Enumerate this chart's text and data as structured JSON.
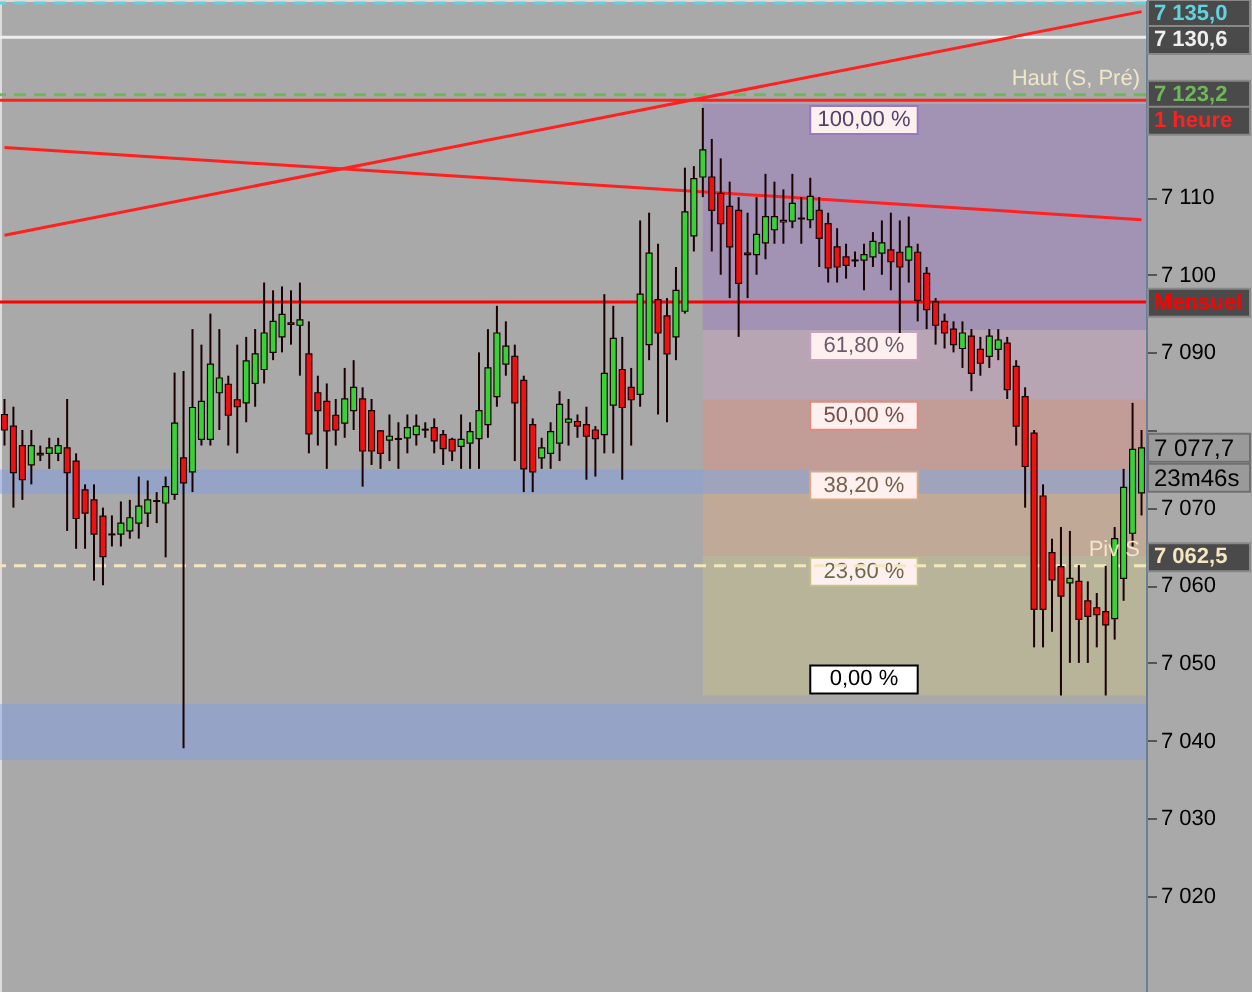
{
  "chart_data": {
    "type": "candlestick",
    "categories": [
      null,
      null,
      null,
      null,
      null,
      null,
      null,
      null,
      null,
      null,
      null,
      null,
      null,
      null,
      null,
      null,
      null,
      null,
      null,
      null,
      null,
      null,
      null,
      null,
      null,
      null,
      null,
      null,
      null,
      null,
      null,
      null,
      null,
      null,
      null,
      null,
      null,
      null,
      null,
      null,
      null,
      null,
      null,
      null,
      null,
      null,
      null,
      null,
      null,
      null,
      null,
      null,
      null,
      null,
      null,
      null,
      null,
      null,
      null,
      null,
      null,
      null,
      null,
      null,
      null,
      null,
      null,
      null,
      null,
      null,
      null,
      null,
      null,
      null,
      null,
      null,
      null,
      null,
      null,
      null,
      null,
      null,
      null,
      null,
      null,
      null,
      null,
      null,
      null,
      null,
      null,
      null,
      null,
      null,
      null,
      null,
      null,
      null,
      null,
      null,
      null,
      null,
      null,
      null,
      null,
      null,
      null,
      null,
      null,
      null,
      null,
      null,
      null,
      null,
      null,
      null,
      null,
      null,
      null,
      null,
      null,
      null,
      null,
      null,
      null,
      null,
      null,
      null
    ],
    "ohlc": [
      [
        7082,
        7084,
        7078,
        7080
      ],
      [
        7080.5,
        7083,
        7070,
        7074.5
      ],
      [
        7078,
        7080,
        7071,
        7073.6
      ],
      [
        7075.5,
        7080,
        7073,
        7078
      ],
      [
        7076.8,
        7078,
        7076,
        7077
      ],
      [
        7077,
        7079,
        7075,
        7077.7
      ],
      [
        7077,
        7079,
        7076,
        7078
      ],
      [
        7077.7,
        7084,
        7067,
        7074.5
      ],
      [
        7076,
        7077,
        7064.7,
        7068.6
      ],
      [
        7072.3,
        7073,
        7064.7,
        7069.3
      ],
      [
        7071,
        7073,
        7060.6,
        7066.6
      ],
      [
        7068.9,
        7070,
        7060,
        7063.7
      ],
      [
        7066.5,
        7069,
        7065,
        7066.6
      ],
      [
        7066.6,
        7070.8,
        7065,
        7068
      ],
      [
        7067,
        7071,
        7066,
        7068.7
      ],
      [
        7068,
        7074,
        7066,
        7070.2
      ],
      [
        7069.3,
        7073.5,
        7067.5,
        7071
      ],
      [
        7070.8,
        7072,
        7068,
        7070.9
      ],
      [
        7070.6,
        7074,
        7063.6,
        7072.7
      ],
      [
        7071.7,
        7087.4,
        7071,
        7080.9
      ],
      [
        7076.4,
        7087.6,
        7039,
        7073.2
      ],
      [
        7074.6,
        7093,
        7072,
        7082.9
      ],
      [
        7078.8,
        7091,
        7078,
        7083.7
      ],
      [
        7078.8,
        7095,
        7078,
        7088.5
      ],
      [
        7084.8,
        7093,
        7080,
        7086.7
      ],
      [
        7085.9,
        7087,
        7078,
        7081.9
      ],
      [
        7083.9,
        7091,
        7077,
        7083
      ],
      [
        7083.5,
        7092,
        7081,
        7088.9
      ],
      [
        7086,
        7093,
        7083,
        7089.8
      ],
      [
        7087.8,
        7099,
        7086,
        7092.5
      ],
      [
        7090,
        7098,
        7089,
        7094
      ],
      [
        7092,
        7098.5,
        7090,
        7094.9
      ],
      [
        7093.6,
        7098,
        7091,
        7093.8
      ],
      [
        7093.5,
        7099,
        7087,
        7094.2
      ],
      [
        7089.8,
        7094,
        7077,
        7079.5
      ],
      [
        7084.8,
        7087,
        7078,
        7082.5
      ],
      [
        7083.7,
        7086,
        7075,
        7079.9
      ],
      [
        7081.9,
        7084,
        7078,
        7080
      ],
      [
        7080.9,
        7088,
        7079,
        7084
      ],
      [
        7082.5,
        7089,
        7080,
        7085.5
      ],
      [
        7084,
        7085.5,
        7072.7,
        7077.3
      ],
      [
        7082.5,
        7084,
        7075.5,
        7077.3
      ],
      [
        7079.9,
        7080,
        7075,
        7077
      ],
      [
        7078.7,
        7082,
        7076,
        7079.2
      ],
      [
        7078.9,
        7081,
        7075,
        7078.8
      ],
      [
        7079,
        7082,
        7077,
        7080.3
      ],
      [
        7079.4,
        7082,
        7078,
        7080.5
      ],
      [
        7080,
        7081,
        7079,
        7080.1
      ],
      [
        7080.3,
        7081.5,
        7077,
        7078.6
      ],
      [
        7079.4,
        7080,
        7075.5,
        7077.6
      ],
      [
        7078.8,
        7079,
        7076,
        7077.3
      ],
      [
        7077.9,
        7082,
        7075,
        7078.8
      ],
      [
        7078.3,
        7081,
        7075,
        7079.8
      ],
      [
        7078.9,
        7090,
        7075,
        7082.5
      ],
      [
        7080.7,
        7093,
        7079,
        7088
      ],
      [
        7084.3,
        7096,
        7083,
        7092.5
      ],
      [
        7088.5,
        7094,
        7087,
        7090.8
      ],
      [
        7089.5,
        7091,
        7076,
        7083.5
      ],
      [
        7086.4,
        7087,
        7072,
        7075
      ],
      [
        7080.7,
        7081.5,
        7072,
        7074.6
      ],
      [
        7076.4,
        7079,
        7075,
        7077.7
      ],
      [
        7077,
        7081,
        7075,
        7079.8
      ],
      [
        7078.3,
        7085,
        7076,
        7083.3
      ],
      [
        7081,
        7084,
        7078,
        7081.4
      ],
      [
        7081.1,
        7082,
        7079,
        7080.5
      ],
      [
        7080.7,
        7083,
        7073.6,
        7079.2
      ],
      [
        7080,
        7080.5,
        7074,
        7078.9
      ],
      [
        7079.4,
        7097.5,
        7077,
        7087.3
      ],
      [
        7083.2,
        7096,
        7077,
        7091.8
      ],
      [
        7087.8,
        7092,
        7073.6,
        7082.9
      ],
      [
        7085.5,
        7088,
        7078,
        7083.9
      ],
      [
        7084.6,
        7107,
        7083,
        7097.5
      ],
      [
        7091,
        7108,
        7089,
        7102.8
      ],
      [
        7096.8,
        7104,
        7082,
        7092.5
      ],
      [
        7094.7,
        7097,
        7081,
        7089.8
      ],
      [
        7092,
        7101,
        7089,
        7098
      ],
      [
        7095.3,
        7113.8,
        7095,
        7108.1
      ],
      [
        7105,
        7114,
        7103,
        7112.4
      ],
      [
        7112.6,
        7121.5,
        7110,
        7116.1
      ],
      [
        7112.6,
        7117.5,
        7103,
        7108.3
      ],
      [
        7110.5,
        7115,
        7100,
        7106.6
      ],
      [
        7108.8,
        7112,
        7097,
        7103.6
      ],
      [
        7108.3,
        7110,
        7092,
        7098.9
      ],
      [
        7102.6,
        7108,
        7097,
        7102.8
      ],
      [
        7102.6,
        7110,
        7100,
        7105.2
      ],
      [
        7104.1,
        7113,
        7102,
        7107.5
      ],
      [
        7105.8,
        7112,
        7104,
        7107.5
      ],
      [
        7106.8,
        7111,
        7104,
        7107
      ],
      [
        7106.9,
        7113,
        7106,
        7109.2
      ],
      [
        7107.3,
        7110,
        7104,
        7107.2
      ],
      [
        7107.1,
        7112.5,
        7106,
        7110.1
      ],
      [
        7108.3,
        7110,
        7101,
        7104.7
      ],
      [
        7106.6,
        7108,
        7099,
        7100.9
      ],
      [
        7103.6,
        7106,
        7099,
        7101
      ],
      [
        7102.3,
        7104,
        7099.5,
        7101.2
      ],
      [
        7101.8,
        7103,
        7101,
        7101.9
      ],
      [
        7101.9,
        7104,
        7098,
        7102.6
      ],
      [
        7102.3,
        7105.5,
        7101,
        7104.3
      ],
      [
        7102.8,
        7107,
        7100,
        7104.1
      ],
      [
        7103.2,
        7108,
        7098,
        7101.7
      ],
      [
        7102.9,
        7107,
        7092.5,
        7101
      ],
      [
        7101.9,
        7107.5,
        7099,
        7103.6
      ],
      [
        7102.9,
        7104,
        7094,
        7096.7
      ],
      [
        7100.2,
        7101,
        7093,
        7095.5
      ],
      [
        7096.5,
        7097,
        7091,
        7093.5
      ],
      [
        7094,
        7095,
        7090.5,
        7092.5
      ],
      [
        7093,
        7094,
        7090,
        7091
      ],
      [
        7090.5,
        7094,
        7088,
        7092.5
      ],
      [
        7092.1,
        7093,
        7085,
        7087.3
      ],
      [
        7090.4,
        7092,
        7087,
        7088.6
      ],
      [
        7089.5,
        7093,
        7088,
        7092.1
      ],
      [
        7090.4,
        7093,
        7089,
        7091.6
      ],
      [
        7091.2,
        7092,
        7084,
        7085.2
      ],
      [
        7088.2,
        7089,
        7078,
        7080.5
      ],
      [
        7084.3,
        7085.5,
        7070,
        7075.3
      ],
      [
        7079.6,
        7080,
        7052,
        7056.9
      ],
      [
        7071.5,
        7073,
        7052,
        7056.9
      ],
      [
        7064.2,
        7066,
        7054,
        7060.7
      ],
      [
        7062.4,
        7067.5,
        7045.8,
        7058.6
      ],
      [
        7060.3,
        7067,
        7050,
        7060.9
      ],
      [
        7060.5,
        7062.6,
        7050,
        7055.6
      ],
      [
        7058,
        7060.5,
        7050,
        7056
      ],
      [
        7057.1,
        7059,
        7052,
        7056.2
      ],
      [
        7056.6,
        7062.5,
        7045.8,
        7054.9
      ],
      [
        7055.7,
        7067.5,
        7053,
        7066
      ],
      [
        7060.9,
        7075,
        7058,
        7072.6
      ],
      [
        7066.7,
        7083.5,
        7065,
        7077.5
      ],
      [
        7071.9,
        7080,
        7069,
        7077.7
      ]
    ],
    "series": [
      {
        "type": "line",
        "values": [
          7105.1,
          null,
          null,
          null,
          null,
          null,
          null,
          null,
          null,
          null,
          null,
          null,
          null,
          null,
          null,
          null,
          null,
          null,
          null,
          null,
          null,
          null,
          null,
          null,
          null,
          null,
          null,
          null,
          null,
          null,
          null,
          null,
          null,
          null,
          null,
          null,
          null,
          null,
          null,
          null,
          null,
          null,
          null,
          null,
          null,
          null,
          null,
          null,
          null,
          null,
          null,
          null,
          null,
          null,
          null,
          null,
          null,
          null,
          null,
          null,
          null,
          null,
          null,
          null,
          null,
          null,
          null,
          null,
          null,
          null,
          null,
          null,
          null,
          null,
          null,
          null,
          null,
          null,
          null,
          null,
          null,
          null,
          null,
          null,
          null,
          null,
          null,
          null,
          null,
          null,
          null,
          null,
          null,
          null,
          null,
          null,
          null,
          null,
          null,
          null,
          null,
          null,
          null,
          null,
          null,
          null,
          null,
          null,
          null,
          null,
          null,
          null,
          null,
          null,
          null,
          null,
          null,
          null,
          null,
          null,
          null,
          null,
          null,
          null,
          null,
          null,
          null,
          7133.9
        ],
        "color": "#ff2020"
      },
      {
        "type": "line",
        "values": [
          7116.4,
          null,
          null,
          null,
          null,
          null,
          null,
          null,
          null,
          null,
          null,
          null,
          null,
          null,
          null,
          null,
          null,
          null,
          null,
          null,
          null,
          null,
          null,
          null,
          null,
          null,
          null,
          null,
          null,
          null,
          null,
          null,
          null,
          null,
          null,
          null,
          null,
          null,
          null,
          null,
          null,
          null,
          null,
          null,
          null,
          null,
          null,
          null,
          null,
          null,
          null,
          null,
          null,
          null,
          null,
          null,
          null,
          null,
          null,
          null,
          null,
          null,
          null,
          null,
          null,
          null,
          null,
          null,
          null,
          null,
          null,
          null,
          null,
          null,
          null,
          null,
          null,
          null,
          null,
          null,
          null,
          null,
          null,
          null,
          null,
          null,
          null,
          null,
          null,
          null,
          null,
          null,
          null,
          null,
          null,
          null,
          null,
          null,
          null,
          null,
          null,
          null,
          null,
          null,
          null,
          null,
          null,
          null,
          null,
          null,
          null,
          null,
          null,
          null,
          null,
          null,
          null,
          null,
          null,
          null,
          null,
          null,
          null,
          null,
          null,
          null,
          null,
          7107.1
        ],
        "color": "#ff2020"
      }
    ],
    "ylim": [
      7007.6,
      7135.4
    ],
    "yticks": [
      {
        "value": 7020,
        "label": "7 020"
      },
      {
        "value": 7030,
        "label": "7 030"
      },
      {
        "value": 7040,
        "label": "7 040"
      },
      {
        "value": 7050,
        "label": "7 050"
      },
      {
        "value": 7060,
        "label": "7 060"
      },
      {
        "value": 7070,
        "label": "7 070"
      },
      {
        "value": 7080,
        "label": null
      },
      {
        "value": 7090,
        "label": "7 090"
      },
      {
        "value": 7100,
        "label": "7 100"
      },
      {
        "value": 7110,
        "label": "7 110"
      }
    ],
    "tick_labels": "y",
    "ref_lines": [
      {
        "axis": "y",
        "value": 7135.0,
        "label": "7 135,0",
        "color": "#5fd3e0",
        "line_style": "dashed"
      },
      {
        "axis": "y",
        "value": 7130.6,
        "label": "7 130,6",
        "color": "#eeeeee",
        "line_style": "solid"
      },
      {
        "axis": "y",
        "value": 7123.2,
        "label": "7 123,2",
        "color": "#6fb85a",
        "line_style": "dashed"
      },
      {
        "axis": "y",
        "value": 7122.5,
        "label": "1 heure",
        "color": "#ff2020",
        "line_style": "solid"
      },
      {
        "axis": "y",
        "value": 7096.5,
        "label": "Mensuel",
        "color": "#ff0000",
        "line_style": "solid"
      },
      {
        "axis": "y",
        "value": 7062.5,
        "label": "7 062,5",
        "color": "#f5e6c0",
        "line_style": "dashed"
      }
    ],
    "bands": [
      {
        "axis": "y",
        "from": 7092.9,
        "to": 7122.0,
        "label": "100,00 %",
        "color": "#9a78c0"
      },
      {
        "axis": "y",
        "from": 7083.9,
        "to": 7092.9,
        "label": "61,80 %",
        "color": "#c8a0c0"
      },
      {
        "axis": "y",
        "from": 7074.9,
        "to": 7083.9,
        "label": "50,00 %",
        "color": "#e08c80"
      },
      {
        "axis": "y",
        "from": 7063.8,
        "to": 7074.9,
        "label": "38,20 %",
        "color": "#dca880"
      },
      {
        "axis": "y",
        "from": 7045.8,
        "to": 7063.8,
        "label": "23,60 %",
        "color": "#c8c088"
      },
      {
        "axis": "y",
        "from": 7071.8,
        "to": 7074.9,
        "color": "#7a9be8"
      },
      {
        "axis": "y",
        "from": 7037.5,
        "to": 7044.7,
        "color": "#7a9be8"
      }
    ],
    "annotations": [
      {
        "text": "Haut (S, Pré)",
        "y": 7123.2
      },
      {
        "text": "Piv S",
        "y": 7062.5
      },
      {
        "text": "0,00 %",
        "y": 7045.8
      },
      "7 077,7",
      "23m46s"
    ]
  }
}
